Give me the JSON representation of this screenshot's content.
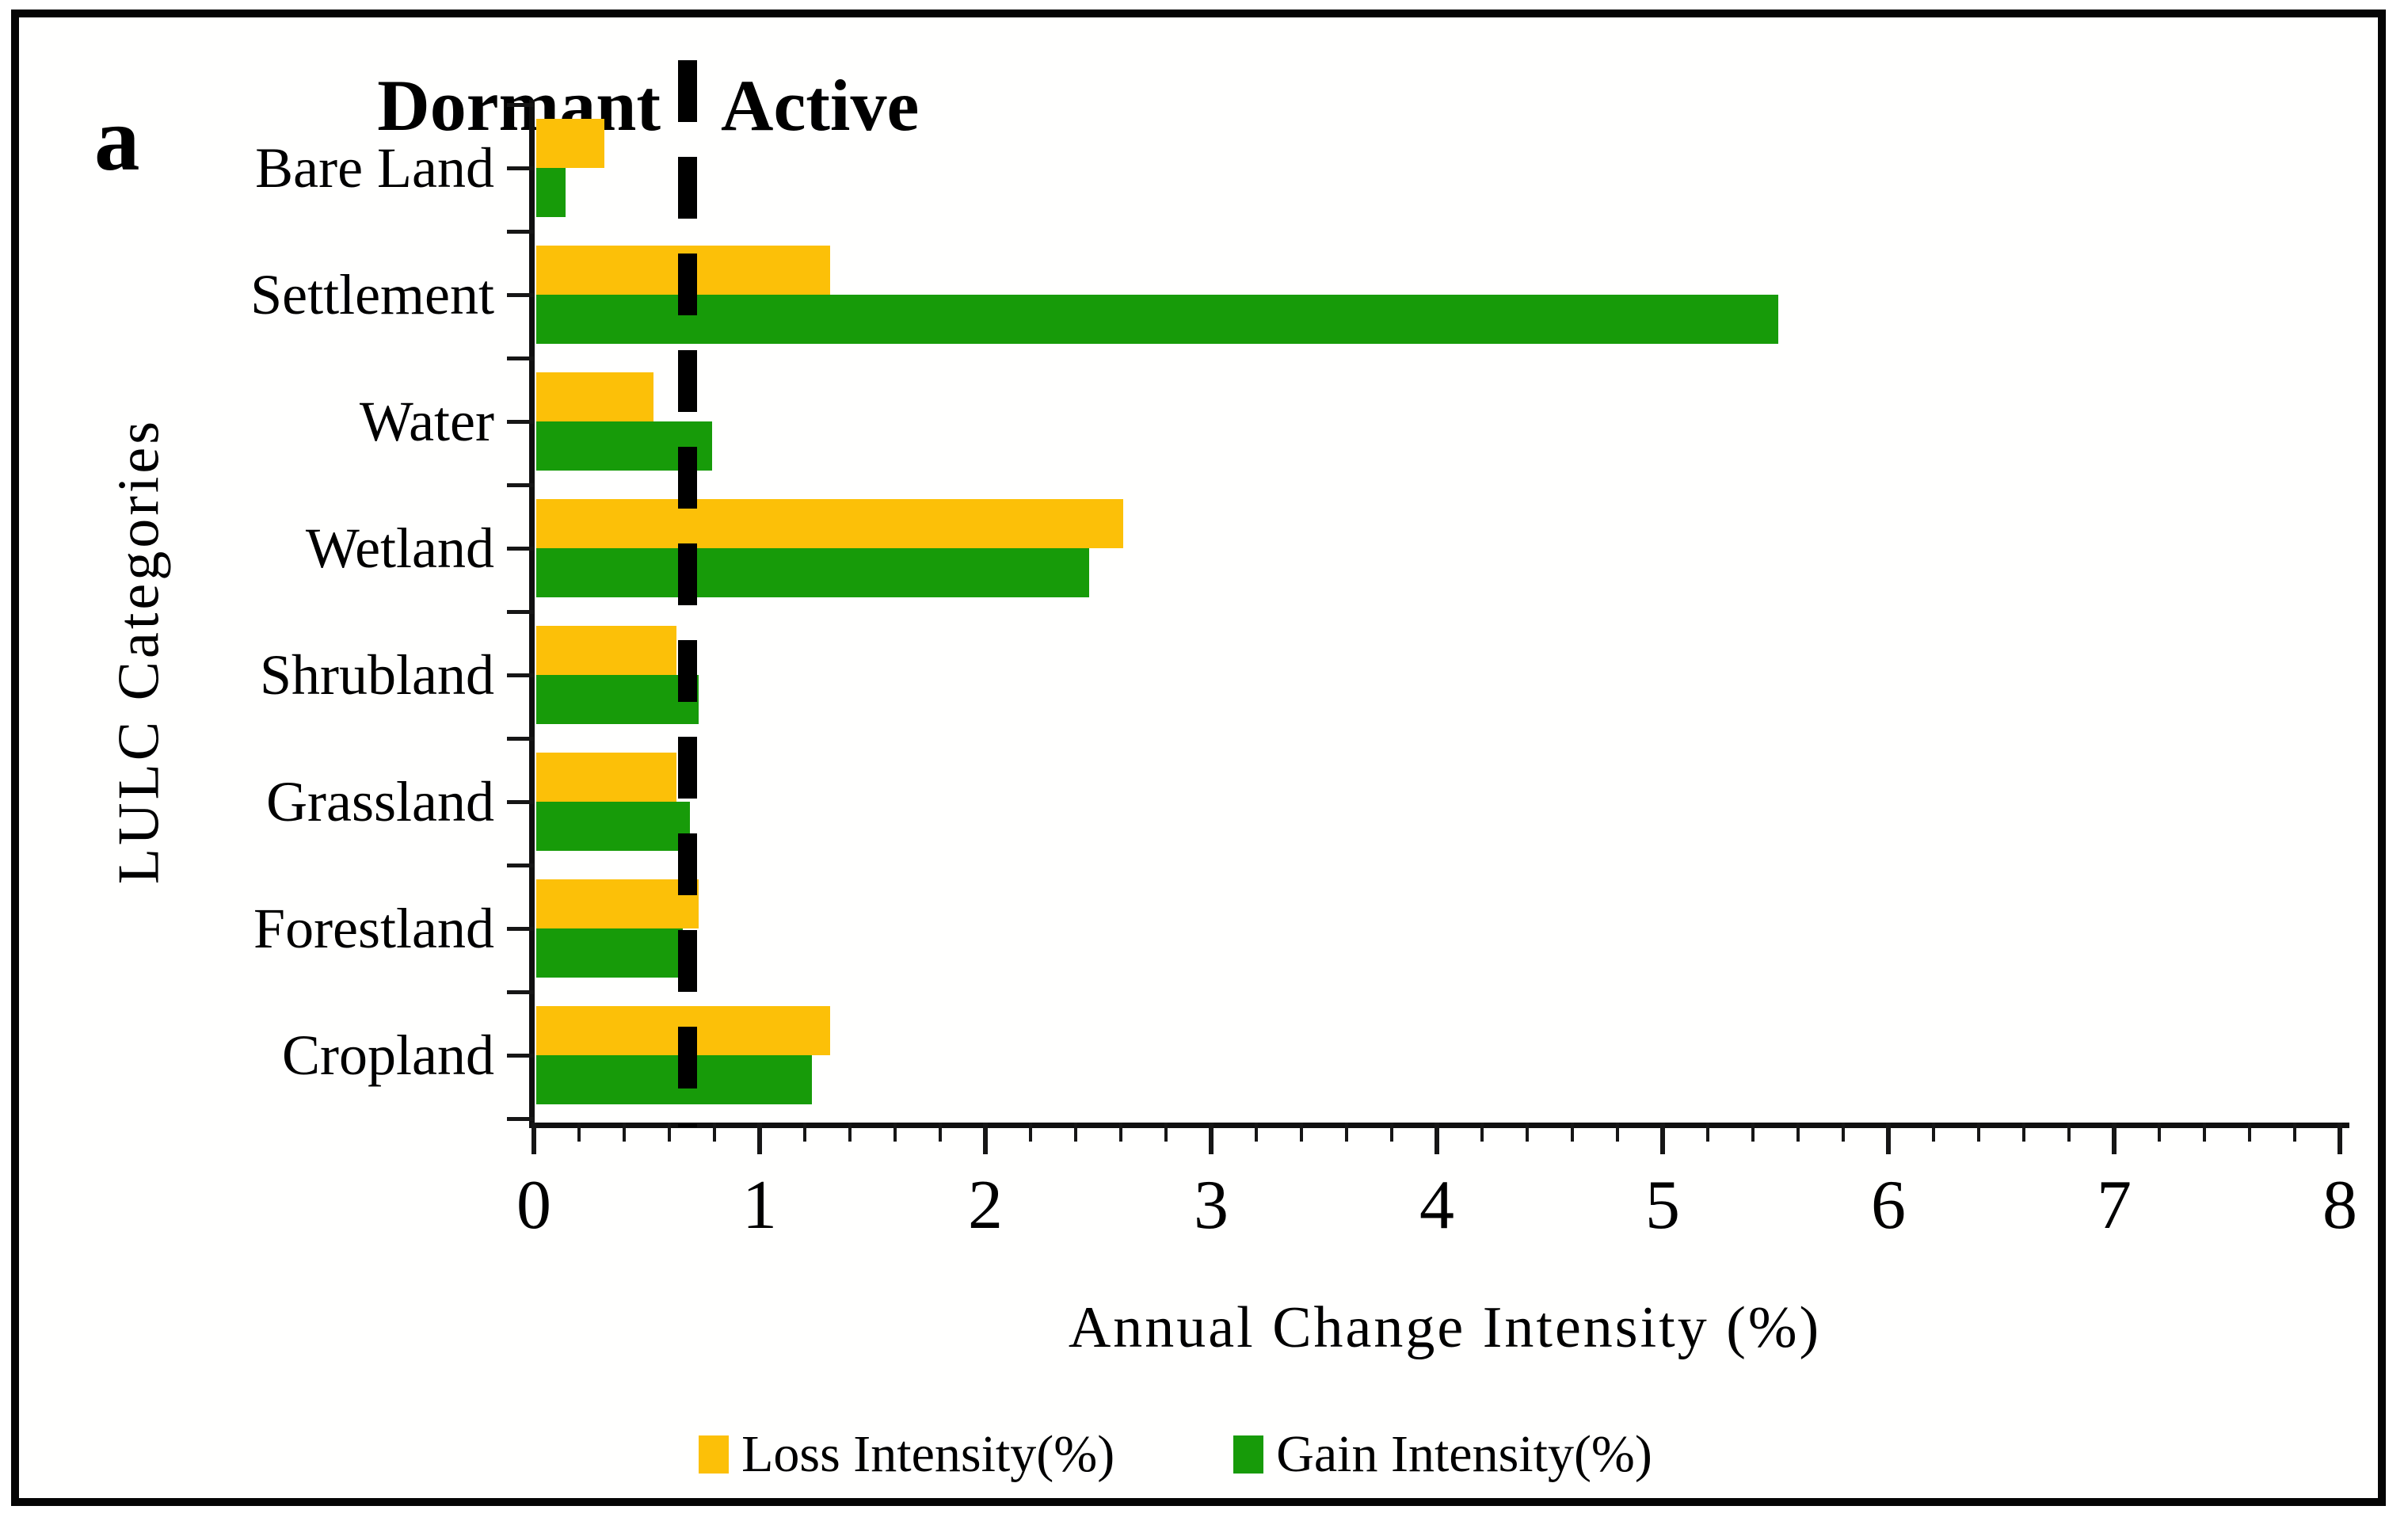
{
  "figure": {
    "panel_label": "a",
    "zone_labels": {
      "left": "Dormant",
      "right": "Active"
    },
    "colors": {
      "loss": "#FCC008",
      "gain": "#179B09",
      "ink": "#000000"
    }
  },
  "chart_data": {
    "type": "bar",
    "orientation": "horizontal",
    "categories": [
      "Bare Land",
      "Settlement",
      "Water",
      "Wetland",
      "Shrubland",
      "Grassland",
      "Forestland",
      "Cropland"
    ],
    "series": [
      {
        "name": "Loss Intensity(%)",
        "color": "#FCC008",
        "values": [
          0.3,
          1.3,
          0.52,
          2.6,
          0.62,
          0.62,
          0.72,
          1.3
        ]
      },
      {
        "name": "Gain Intensity(%)",
        "color": "#179B09",
        "values": [
          0.13,
          5.5,
          0.78,
          2.45,
          0.72,
          0.68,
          0.65,
          1.22
        ]
      }
    ],
    "xlabel": "Annual Change Intensity (%)",
    "ylabel": "LULC Categories",
    "xlim": [
      0,
      8
    ],
    "x_major_ticks": [
      0,
      1,
      2,
      3,
      4,
      5,
      6,
      7,
      8
    ],
    "x_minor_step": 0.2,
    "grid": false,
    "threshold_line": {
      "value": 0.68,
      "style": "dashed",
      "color": "#000000",
      "label_left": "Dormant",
      "label_right": "Active"
    },
    "legend_position": "bottom"
  }
}
